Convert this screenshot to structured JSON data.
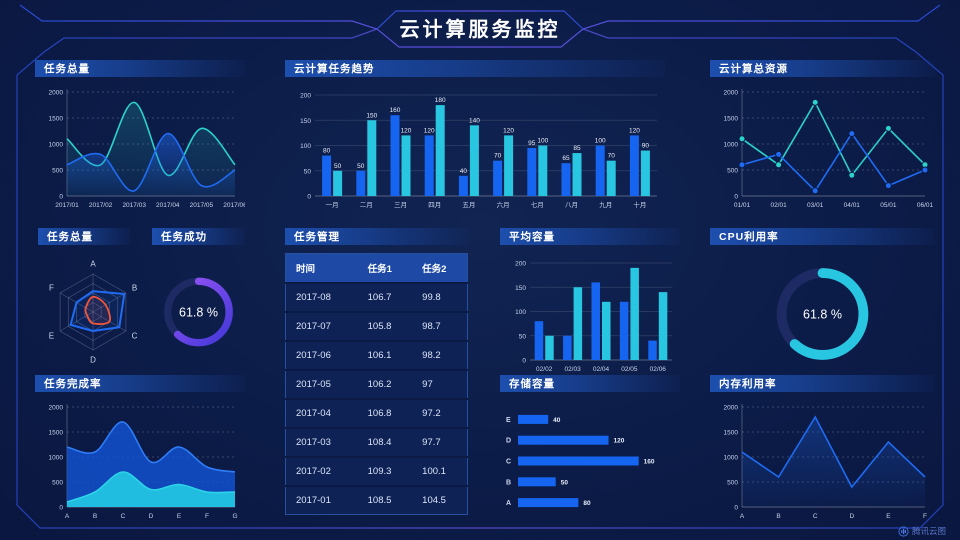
{
  "page": {
    "title": "云计算服务监控",
    "watermark": "腾讯云图"
  },
  "colors": {
    "background": "#0c1c48",
    "frame_line": "#3b55e6",
    "accent_blue": "#1565f0",
    "accent_cyan": "#29c6e2",
    "accent_teal": "#2bd2c9",
    "accent_purple": "#9d55f8",
    "accent_red": "#f0563c",
    "panel_header": "#1d4fae",
    "axis_text": "#c7d2ec"
  },
  "chart_data": [
    {
      "id": "tasks-total-line",
      "title": "任务总量",
      "type": "line",
      "smooth": true,
      "x": [
        "2017/01",
        "2017/02",
        "2017/03",
        "2017/04",
        "2017/05",
        "2017/06"
      ],
      "ylim": [
        0,
        2000
      ],
      "yticks": [
        0,
        500,
        1000,
        1500,
        2000
      ],
      "series": [
        {
          "color": "#2bd2c9",
          "values": [
            1100,
            600,
            1800,
            400,
            1300,
            600
          ],
          "area": 0.2
        },
        {
          "color": "#1f6bf2",
          "values": [
            600,
            800,
            100,
            1200,
            200,
            500
          ],
          "area": 0.5
        }
      ]
    },
    {
      "id": "cloud-task-trend",
      "title": "云计算任务趋势",
      "type": "bar",
      "bar_labels": true,
      "categories": [
        "一月",
        "二月",
        "三月",
        "四月",
        "五月",
        "六月",
        "七月",
        "八月",
        "九月",
        "十月"
      ],
      "ylim": [
        0,
        200
      ],
      "yticks": [
        0,
        50,
        100,
        150,
        200
      ],
      "series": [
        {
          "color": "#1565f0",
          "values": [
            80,
            50,
            160,
            120,
            40,
            70,
            95,
            65,
            100,
            120
          ]
        },
        {
          "color": "#29c6e2",
          "values": [
            50,
            150,
            120,
            180,
            140,
            120,
            100,
            85,
            70,
            90
          ]
        }
      ]
    },
    {
      "id": "cloud-total-resources",
      "title": "云计算总资源",
      "type": "line",
      "smooth": false,
      "x": [
        "01/01",
        "02/01",
        "03/01",
        "04/01",
        "05/01",
        "06/01"
      ],
      "ylim": [
        0,
        2000
      ],
      "yticks": [
        0,
        500,
        1000,
        1500,
        2000
      ],
      "series": [
        {
          "color": "#2bd2c9",
          "values": [
            1100,
            600,
            1800,
            400,
            1300,
            600
          ],
          "markers": true
        },
        {
          "color": "#1f6bf2",
          "values": [
            600,
            800,
            100,
            1200,
            200,
            500
          ],
          "markers": true
        }
      ]
    },
    {
      "id": "tasks-radar",
      "title": "任务总量",
      "type": "radar",
      "axes": [
        "A",
        "B",
        "C",
        "D",
        "E",
        "F"
      ],
      "max": 100,
      "series": [
        {
          "color": "#1f6bf2",
          "values": [
            55,
            95,
            80,
            50,
            68,
            50
          ],
          "width": 2
        },
        {
          "color": "#f0563c",
          "values": [
            40,
            38,
            50,
            30,
            18,
            22
          ],
          "smooth": true,
          "width": 1.8
        }
      ]
    },
    {
      "id": "task-success",
      "title": "任务成功",
      "type": "donut",
      "value": 61.8,
      "label": "61.8 %",
      "colors": [
        "#4138d8",
        "#9d55f8"
      ]
    },
    {
      "id": "task-management",
      "title": "任务管理",
      "type": "table",
      "columns": [
        "时间",
        "任务1",
        "任务2"
      ],
      "rows": [
        [
          "2017-08",
          "106.7",
          "99.8"
        ],
        [
          "2017-07",
          "105.8",
          "98.7"
        ],
        [
          "2017-06",
          "106.1",
          "98.2"
        ],
        [
          "2017-05",
          "106.2",
          "97"
        ],
        [
          "2017-04",
          "106.8",
          "97.2"
        ],
        [
          "2017-03",
          "108.4",
          "97.7"
        ],
        [
          "2017-02",
          "109.3",
          "100.1"
        ],
        [
          "2017-01",
          "108.5",
          "104.5"
        ]
      ]
    },
    {
      "id": "avg-capacity",
      "title": "平均容量",
      "type": "bar",
      "bar_labels": false,
      "categories": [
        "02/02",
        "02/03",
        "02/04",
        "02/05",
        "02/06"
      ],
      "ylim": [
        0,
        200
      ],
      "yticks": [
        0,
        50,
        100,
        150,
        200
      ],
      "series": [
        {
          "color": "#1565f0",
          "values": [
            80,
            50,
            160,
            120,
            40
          ]
        },
        {
          "color": "#29c6e2",
          "values": [
            50,
            150,
            120,
            190,
            140
          ]
        }
      ]
    },
    {
      "id": "cpu-utilization",
      "title": "CPU利用率",
      "type": "donut",
      "value": 61.8,
      "label": "61.8 %",
      "colors": [
        "#29c6e2",
        "#29c6e2"
      ]
    },
    {
      "id": "task-completion",
      "title": "任务完成率",
      "type": "line",
      "smooth": true,
      "x": [
        "A",
        "B",
        "C",
        "D",
        "E",
        "F",
        "G"
      ],
      "ylim": [
        0,
        2000
      ],
      "yticks": [
        0,
        500,
        1000,
        1500,
        2000
      ],
      "series": [
        {
          "color": "#2e7cf8",
          "values": [
            1200,
            1100,
            1700,
            900,
            1200,
            800,
            700
          ],
          "area": 0.8,
          "flat": true,
          "fill": "#1254d6"
        },
        {
          "color": "#2bd4e8",
          "values": [
            100,
            300,
            700,
            350,
            450,
            300,
            300
          ],
          "area": 0.95,
          "flat": true,
          "fill": "#22c3e2"
        }
      ]
    },
    {
      "id": "storage-capacity",
      "title": "存储容量",
      "type": "hbar",
      "categories": [
        "E",
        "D",
        "C",
        "B",
        "A"
      ],
      "values": [
        40,
        120,
        160,
        50,
        80
      ],
      "color": "#1565f0",
      "xmax": 175
    },
    {
      "id": "memory-utilization",
      "title": "内存利用率",
      "type": "line",
      "smooth": false,
      "x": [
        "A",
        "B",
        "C",
        "D",
        "E",
        "F"
      ],
      "ylim": [
        0,
        2000
      ],
      "yticks": [
        0,
        500,
        1000,
        1500,
        2000
      ],
      "series": [
        {
          "color": "#1f6bf2",
          "values": [
            1100,
            600,
            1800,
            400,
            1300,
            600
          ],
          "area": 0.3
        }
      ]
    }
  ]
}
